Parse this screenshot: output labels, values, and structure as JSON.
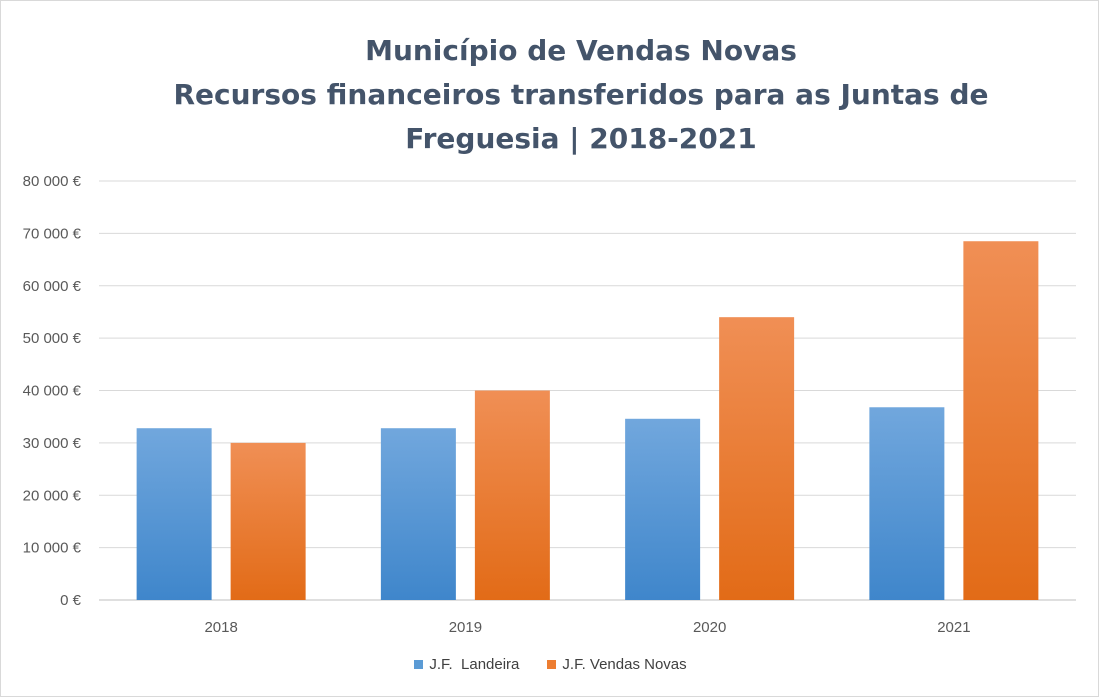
{
  "chart_data": {
    "type": "bar",
    "title_lines": [
      "Município de Vendas Novas",
      "Recursos financeiros transferidos para as Juntas de",
      "Freguesia | 2018-2021"
    ],
    "categories": [
      "2018",
      "2019",
      "2020",
      "2021"
    ],
    "series": [
      {
        "name": "J.F.  Landeira",
        "values": [
          32800,
          32800,
          34600,
          36800
        ],
        "color": "#5b9bd5"
      },
      {
        "name": "J.F. Vendas Novas",
        "values": [
          30000,
          40000,
          54000,
          68500
        ],
        "color": "#ed7d31"
      }
    ],
    "ylim": [
      0,
      80000
    ],
    "yticks": [
      "0 €",
      "10 000 €",
      "20 000 €",
      "30 000 €",
      "40 000 €",
      "50 000 €",
      "60 000 €",
      "70 000 €",
      "80 000 €"
    ],
    "grid": true,
    "legend_position": "bottom"
  }
}
